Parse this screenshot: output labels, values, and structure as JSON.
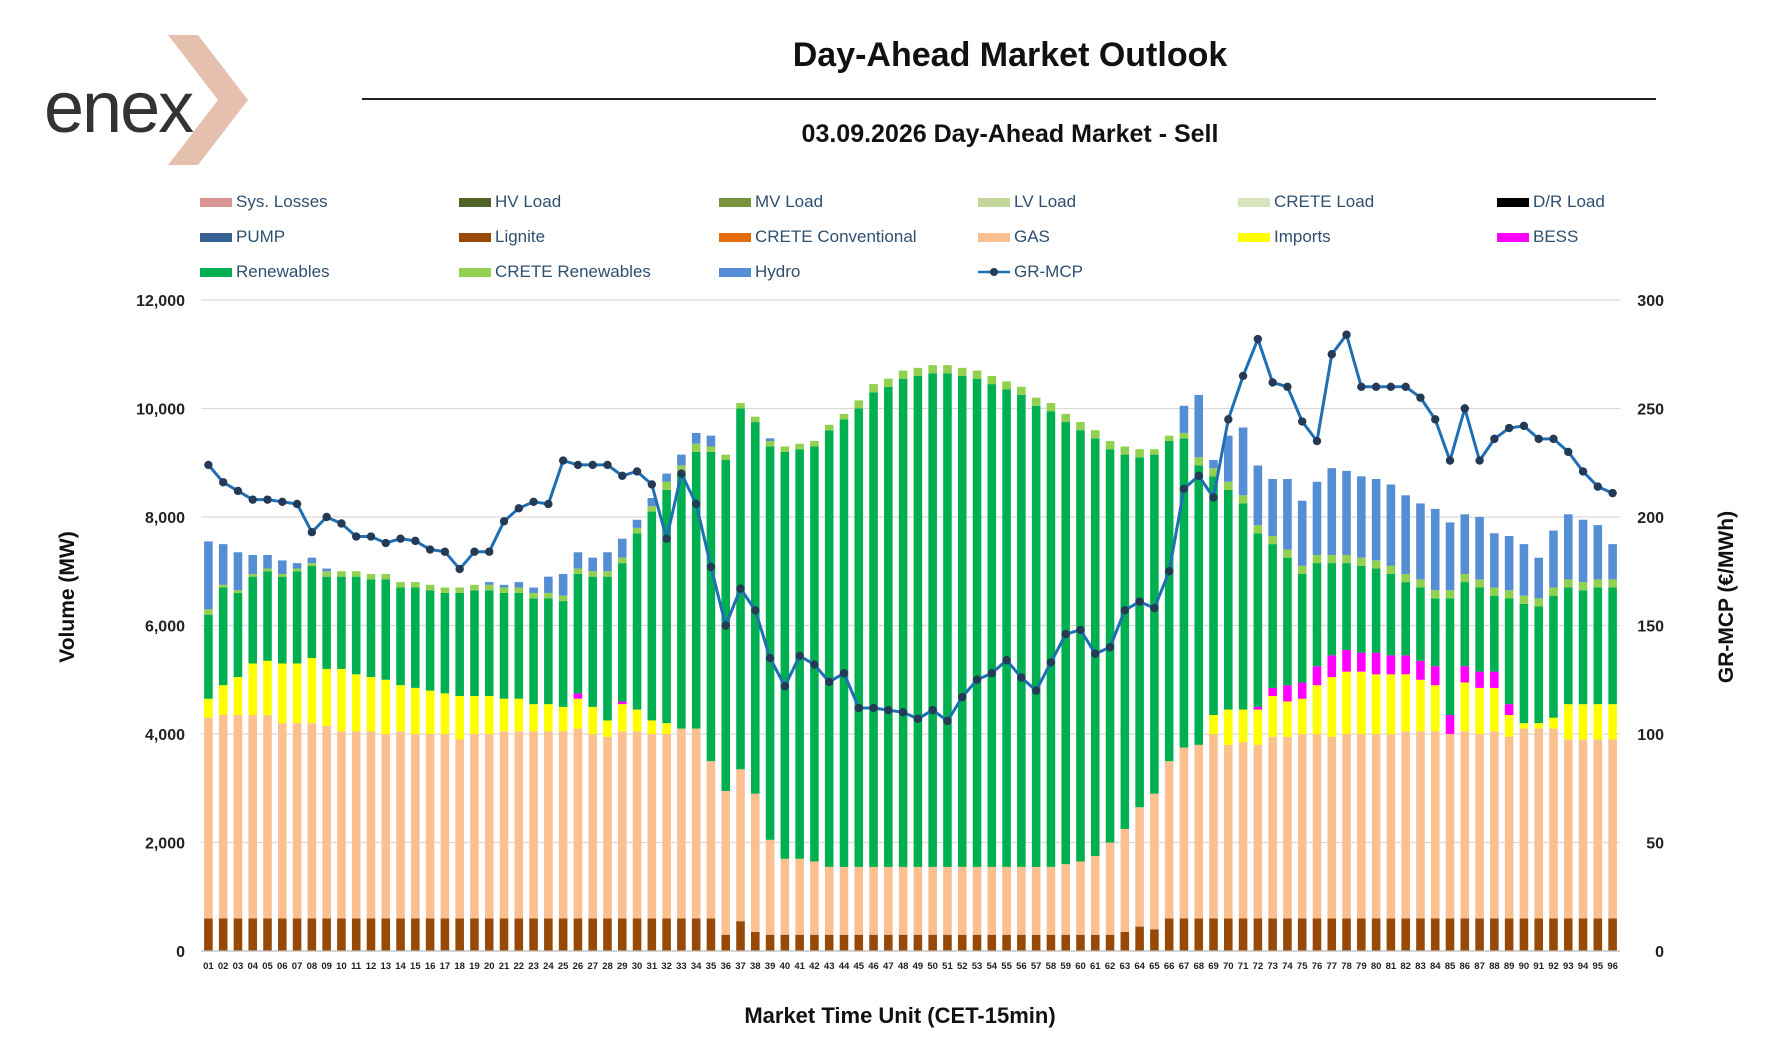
{
  "header": {
    "title": "Day-Ahead Market Outlook",
    "subtitle": "03.09.2026  Day-Ahead Market - Sell",
    "logo_text": "enex"
  },
  "legend": [
    {
      "name": "Sys. Losses",
      "color": "#d99594",
      "kind": "bar"
    },
    {
      "name": "HV Load",
      "color": "#4f6228",
      "kind": "bar"
    },
    {
      "name": "MV Load",
      "color": "#77933c",
      "kind": "bar"
    },
    {
      "name": "LV Load",
      "color": "#c3d69b",
      "kind": "bar"
    },
    {
      "name": "CRETE Load",
      "color": "#d7e4bd",
      "kind": "bar"
    },
    {
      "name": "D/R Load",
      "color": "#000000",
      "kind": "bar"
    },
    {
      "name": "PUMP",
      "color": "#376092",
      "kind": "bar"
    },
    {
      "name": "Lignite",
      "color": "#984807",
      "kind": "bar"
    },
    {
      "name": "CRETE Conventional",
      "color": "#e46c0a",
      "kind": "bar"
    },
    {
      "name": "GAS",
      "color": "#fac090",
      "kind": "bar"
    },
    {
      "name": "Imports",
      "color": "#ffff00",
      "kind": "bar"
    },
    {
      "name": "BESS",
      "color": "#ff00ff",
      "kind": "bar"
    },
    {
      "name": "Renewables",
      "color": "#00b050",
      "kind": "bar"
    },
    {
      "name": "CRETE Renewables",
      "color": "#92d050",
      "kind": "bar"
    },
    {
      "name": "Hydro",
      "color": "#558ed5",
      "kind": "bar"
    },
    {
      "name": "GR-MCP",
      "color": "#1f6fb4",
      "kind": "line"
    }
  ],
  "chart_data": {
    "type": "bar",
    "xlabel": "Market Time Unit (CET-15min)",
    "ylabel": "Volume (MW)",
    "y2label": "GR-MCP (€/MWh)",
    "ylim": [
      0,
      12000
    ],
    "y2lim": [
      0,
      300
    ],
    "yticks": [
      "0",
      "2,000",
      "4,000",
      "6,000",
      "8,000",
      "10,000",
      "12,000"
    ],
    "y2ticks": [
      "0",
      "50",
      "100",
      "150",
      "200",
      "250",
      "300"
    ],
    "categories": [
      "01",
      "02",
      "03",
      "04",
      "05",
      "06",
      "07",
      "08",
      "09",
      "10",
      "11",
      "12",
      "13",
      "14",
      "15",
      "16",
      "17",
      "18",
      "19",
      "20",
      "21",
      "22",
      "23",
      "24",
      "25",
      "26",
      "27",
      "28",
      "29",
      "30",
      "31",
      "32",
      "33",
      "34",
      "35",
      "36",
      "37",
      "38",
      "39",
      "40",
      "41",
      "42",
      "43",
      "44",
      "45",
      "46",
      "47",
      "48",
      "49",
      "50",
      "51",
      "52",
      "53",
      "54",
      "55",
      "56",
      "57",
      "58",
      "59",
      "60",
      "61",
      "62",
      "63",
      "64",
      "65",
      "66",
      "67",
      "68",
      "69",
      "70",
      "71",
      "72",
      "73",
      "74",
      "75",
      "76",
      "77",
      "78",
      "79",
      "80",
      "81",
      "82",
      "83",
      "84",
      "85",
      "86",
      "87",
      "88",
      "89",
      "90",
      "91",
      "92",
      "93",
      "94",
      "95",
      "96"
    ],
    "series": [
      {
        "name": "Lignite",
        "values": [
          600,
          600,
          600,
          600,
          600,
          600,
          600,
          600,
          600,
          600,
          600,
          600,
          600,
          600,
          600,
          600,
          600,
          600,
          600,
          600,
          600,
          600,
          600,
          600,
          600,
          600,
          600,
          600,
          600,
          600,
          600,
          600,
          600,
          600,
          600,
          300,
          550,
          350,
          300,
          300,
          300,
          300,
          300,
          300,
          300,
          300,
          300,
          300,
          300,
          300,
          300,
          300,
          300,
          300,
          300,
          300,
          300,
          300,
          300,
          300,
          300,
          300,
          350,
          450,
          400,
          600,
          600,
          600,
          600,
          600,
          600,
          600,
          600,
          600,
          600,
          600,
          600,
          600,
          600,
          600,
          600,
          600,
          600,
          600,
          600,
          600,
          600,
          600,
          600,
          600,
          600,
          600,
          600,
          600,
          600,
          600
        ]
      },
      {
        "name": "GAS",
        "values": [
          3700,
          3750,
          3750,
          3750,
          3750,
          3600,
          3600,
          3600,
          3550,
          3450,
          3450,
          3450,
          3400,
          3450,
          3400,
          3400,
          3400,
          3300,
          3400,
          3400,
          3450,
          3450,
          3450,
          3450,
          3450,
          3500,
          3400,
          3350,
          3450,
          3450,
          3400,
          3400,
          3500,
          3500,
          2900,
          2650,
          2800,
          2550,
          1750,
          1400,
          1400,
          1350,
          1250,
          1250,
          1250,
          1250,
          1250,
          1250,
          1250,
          1250,
          1250,
          1250,
          1250,
          1250,
          1250,
          1250,
          1250,
          1250,
          1300,
          1350,
          1450,
          1700,
          1900,
          2200,
          2500,
          2900,
          3150,
          3200,
          3400,
          3200,
          3250,
          3200,
          3350,
          3350,
          3400,
          3400,
          3350,
          3400,
          3400,
          3400,
          3400,
          3450,
          3450,
          3450,
          3400,
          3450,
          3400,
          3450,
          3350,
          3500,
          3500,
          3500,
          3300,
          3300,
          3300,
          3300
        ]
      },
      {
        "name": "Imports",
        "values": [
          350,
          550,
          700,
          950,
          1000,
          1100,
          1100,
          1200,
          1050,
          1150,
          1050,
          1000,
          1000,
          850,
          850,
          800,
          750,
          800,
          700,
          700,
          600,
          600,
          500,
          500,
          450,
          550,
          500,
          300,
          500,
          400,
          250,
          200,
          0,
          0,
          0,
          0,
          0,
          0,
          0,
          0,
          0,
          0,
          0,
          0,
          0,
          0,
          0,
          0,
          0,
          0,
          0,
          0,
          0,
          0,
          0,
          0,
          0,
          0,
          0,
          0,
          0,
          0,
          0,
          0,
          0,
          0,
          0,
          0,
          350,
          650,
          600,
          650,
          750,
          650,
          650,
          900,
          1100,
          1150,
          1150,
          1100,
          1100,
          1050,
          950,
          850,
          0,
          900,
          850,
          800,
          400,
          100,
          100,
          200,
          650,
          650,
          650,
          650
        ]
      },
      {
        "name": "BESS",
        "values": [
          0,
          0,
          0,
          0,
          0,
          0,
          0,
          0,
          0,
          0,
          0,
          0,
          0,
          0,
          0,
          0,
          0,
          0,
          0,
          0,
          0,
          0,
          0,
          0,
          0,
          100,
          0,
          0,
          50,
          0,
          0,
          0,
          0,
          0,
          0,
          0,
          0,
          0,
          0,
          0,
          0,
          0,
          0,
          0,
          0,
          0,
          0,
          0,
          0,
          0,
          0,
          0,
          0,
          0,
          0,
          0,
          0,
          0,
          0,
          0,
          0,
          0,
          0,
          0,
          0,
          0,
          0,
          0,
          0,
          0,
          0,
          50,
          150,
          300,
          300,
          350,
          400,
          400,
          350,
          400,
          350,
          350,
          350,
          350,
          350,
          300,
          300,
          300,
          200,
          0,
          0,
          0,
          0,
          0,
          0,
          0
        ]
      },
      {
        "name": "Renewables",
        "values": [
          1550,
          1800,
          1550,
          1600,
          1650,
          1600,
          1700,
          1700,
          1700,
          1700,
          1800,
          1800,
          1850,
          1800,
          1850,
          1850,
          1850,
          1900,
          1950,
          1950,
          1950,
          1950,
          1950,
          1950,
          1950,
          2200,
          2400,
          2650,
          2550,
          3250,
          3850,
          4300,
          4700,
          5100,
          5700,
          6100,
          6650,
          6850,
          7250,
          7500,
          7550,
          7650,
          8050,
          8250,
          8450,
          8750,
          8850,
          9000,
          9050,
          9100,
          9100,
          9050,
          9000,
          8900,
          8800,
          8700,
          8500,
          8400,
          8150,
          7950,
          7700,
          7250,
          6900,
          6450,
          6250,
          5900,
          5700,
          5150,
          4400,
          4050,
          3800,
          3200,
          2650,
          2350,
          2000,
          1900,
          1700,
          1600,
          1600,
          1550,
          1500,
          1350,
          1350,
          1250,
          2150,
          1550,
          1550,
          1400,
          1950,
          2200,
          2150,
          2250,
          2150,
          2100,
          2150,
          2150
        ]
      },
      {
        "name": "CRETE Renewables",
        "values": [
          100,
          50,
          50,
          50,
          50,
          50,
          50,
          50,
          100,
          100,
          100,
          100,
          100,
          100,
          100,
          100,
          100,
          100,
          100,
          100,
          100,
          100,
          100,
          100,
          100,
          100,
          100,
          100,
          100,
          100,
          100,
          150,
          150,
          150,
          100,
          100,
          100,
          100,
          100,
          100,
          100,
          100,
          100,
          100,
          150,
          150,
          150,
          150,
          150,
          150,
          150,
          150,
          150,
          150,
          150,
          150,
          150,
          150,
          150,
          150,
          150,
          150,
          150,
          150,
          100,
          100,
          100,
          150,
          150,
          150,
          150,
          150,
          150,
          150,
          150,
          150,
          150,
          150,
          150,
          150,
          150,
          150,
          150,
          150,
          150,
          150,
          150,
          150,
          150,
          150,
          150,
          150,
          150,
          150,
          150,
          150
        ]
      },
      {
        "name": "Hydro",
        "values": [
          1250,
          750,
          700,
          350,
          250,
          250,
          100,
          100,
          50,
          0,
          0,
          0,
          0,
          0,
          0,
          0,
          0,
          0,
          0,
          50,
          50,
          100,
          100,
          300,
          400,
          300,
          250,
          350,
          350,
          150,
          150,
          150,
          200,
          200,
          200,
          0,
          0,
          0,
          50,
          0,
          0,
          0,
          0,
          0,
          0,
          0,
          0,
          0,
          0,
          0,
          0,
          0,
          0,
          0,
          0,
          0,
          0,
          0,
          0,
          0,
          0,
          0,
          0,
          0,
          0,
          0,
          500,
          1150,
          150,
          850,
          1250,
          1100,
          1050,
          1300,
          1200,
          1350,
          1600,
          1550,
          1500,
          1500,
          1500,
          1450,
          1400,
          1500,
          1250,
          1100,
          1150,
          1000,
          1000,
          950,
          750,
          1050,
          1200,
          1150,
          1000,
          650
        ]
      }
    ],
    "line_series": {
      "name": "GR-MCP",
      "values": [
        224,
        216,
        212,
        208,
        208,
        207,
        206,
        193,
        200,
        197,
        191,
        191,
        188,
        190,
        189,
        185,
        184,
        176,
        184,
        184,
        198,
        204,
        207,
        206,
        226,
        224,
        224,
        224,
        219,
        221,
        215,
        190,
        220,
        206,
        177,
        150,
        167,
        157,
        135,
        122,
        136,
        132,
        124,
        128,
        112,
        112,
        111,
        110,
        107,
        111,
        106,
        117,
        125,
        128,
        134,
        126,
        120,
        133,
        146,
        148,
        137,
        140,
        157,
        161,
        158,
        175,
        213,
        219,
        209,
        245,
        265,
        282,
        262,
        260,
        244,
        235,
        275,
        284,
        260,
        260,
        260,
        260,
        255,
        245,
        226,
        250,
        226,
        236,
        241,
        242,
        236,
        236,
        230,
        221,
        214,
        211
      ]
    }
  }
}
